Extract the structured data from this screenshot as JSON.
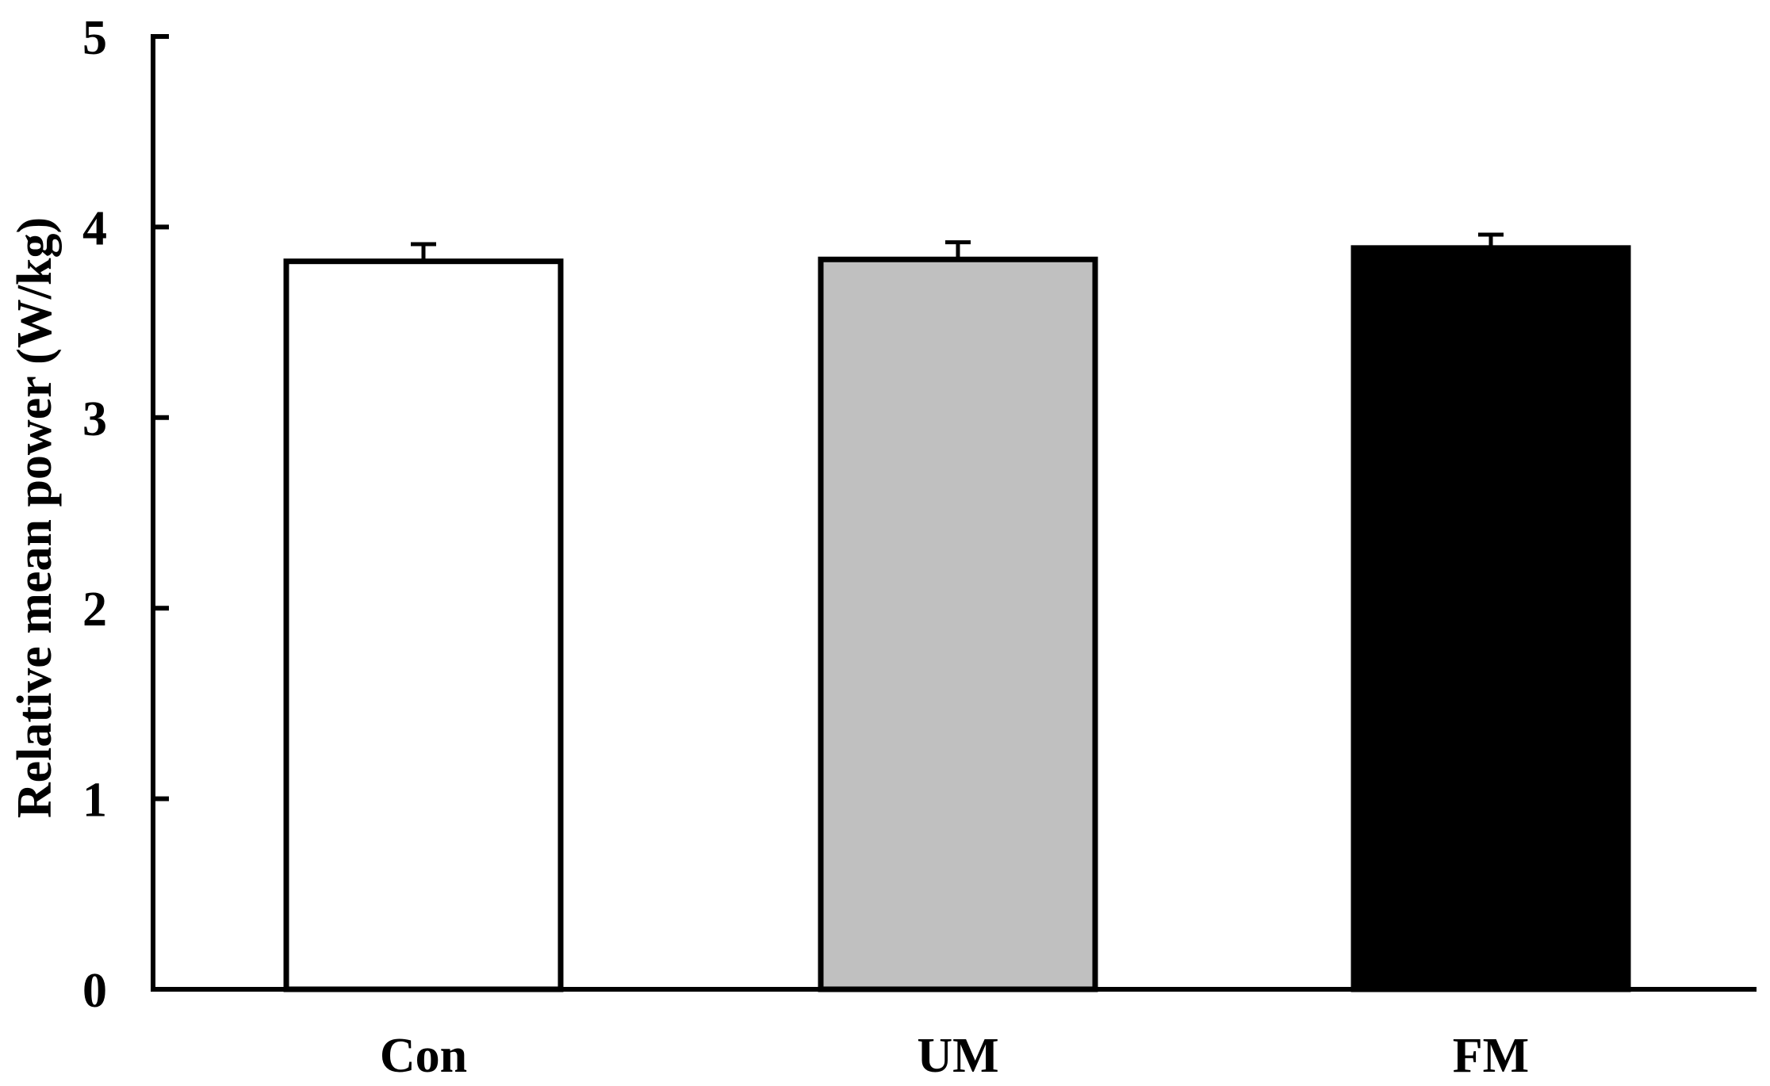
{
  "chart_data": {
    "type": "bar",
    "title": "",
    "xlabel": "",
    "ylabel": "Relative mean power (W/kg)",
    "categories": [
      "Con",
      "UM",
      "FM"
    ],
    "values": [
      3.82,
      3.83,
      3.89
    ],
    "errors": [
      0.09,
      0.09,
      0.07
    ],
    "bar_colors": [
      "#ffffff",
      "#c0c0c0",
      "#000000"
    ],
    "ylim": [
      0,
      5
    ],
    "yticks": [
      "0",
      "1",
      "2",
      "3",
      "4",
      "5"
    ],
    "grid": false,
    "legend": "none"
  }
}
